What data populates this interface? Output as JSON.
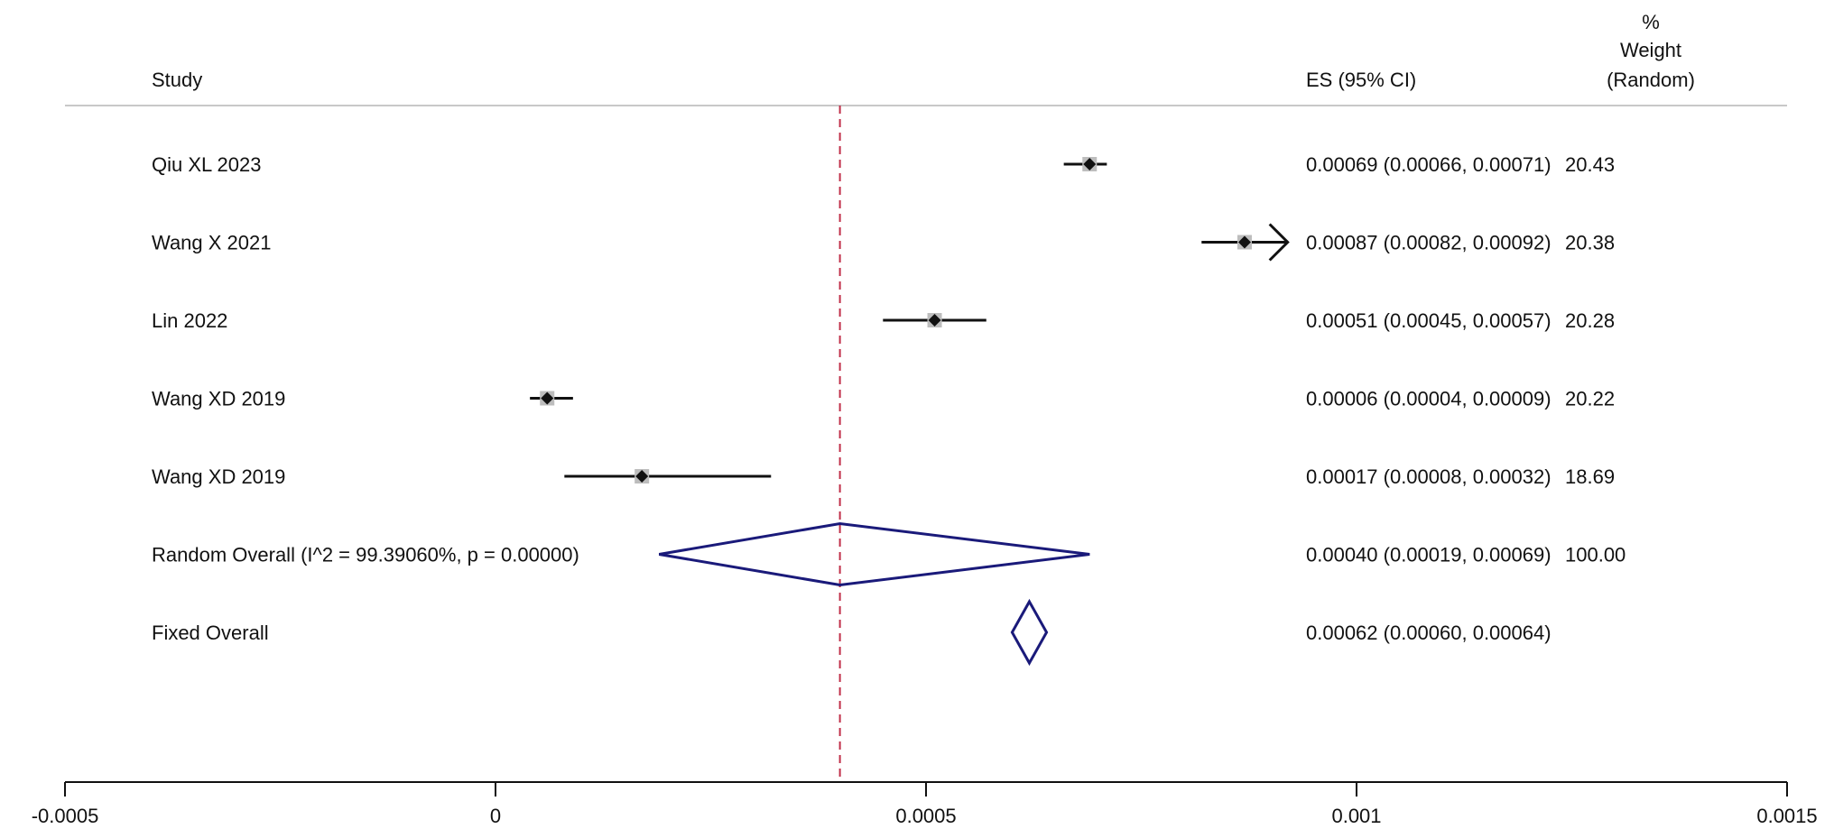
{
  "chart_data": {
    "type": "forest",
    "headers": {
      "study": "Study",
      "es": "ES (95% CI)",
      "weight": [
        "%",
        "Weight",
        "(Random)"
      ]
    },
    "studies": [
      {
        "name": "Qiu XL 2023",
        "es": 0.00069,
        "lo": 0.00066,
        "hi": 0.00071,
        "es_text": "0.00069 (0.00066, 0.00071)",
        "weight": "20.43",
        "arrow": false
      },
      {
        "name": "Wang X 2021",
        "es": 0.00087,
        "lo": 0.00082,
        "hi": 0.00092,
        "es_text": "0.00087 (0.00082, 0.00092)",
        "weight": "20.38",
        "arrow": true
      },
      {
        "name": "Lin 2022",
        "es": 0.00051,
        "lo": 0.00045,
        "hi": 0.00057,
        "es_text": "0.00051 (0.00045, 0.00057)",
        "weight": "20.28",
        "arrow": false
      },
      {
        "name": "Wang XD 2019",
        "es": 6e-05,
        "lo": 4e-05,
        "hi": 9e-05,
        "es_text": "0.00006 (0.00004, 0.00009)",
        "weight": "20.22",
        "arrow": false
      },
      {
        "name": "Wang XD 2019",
        "es": 0.00017,
        "lo": 8e-05,
        "hi": 0.00032,
        "es_text": "0.00017 (0.00008, 0.00032)",
        "weight": "18.69",
        "arrow": false
      }
    ],
    "overall": [
      {
        "name": "Random Overall  (I^2 = 99.39060%, p = 0.00000)",
        "es": 0.0004,
        "lo": 0.00019,
        "hi": 0.00069,
        "es_text": "0.00040 (0.00019, 0.00069)",
        "weight": "100.00"
      },
      {
        "name": "Fixed Overall",
        "es": 0.00062,
        "lo": 0.0006,
        "hi": 0.00064,
        "es_text": "0.00062 (0.00060, 0.00064)",
        "weight": ""
      }
    ],
    "reference_line": 0.0004,
    "xlim": [
      -0.0005,
      0.0015
    ],
    "xticks": [
      -0.0005,
      0,
      0.0005,
      0.001,
      0.0015
    ],
    "xtick_labels": [
      "-0.0005",
      "0",
      "0.0005",
      "0.001",
      "0.0015"
    ],
    "colors": {
      "ci_line": "#111111",
      "point": "#111111",
      "weight_box": "#bdbdbd",
      "diamond": "#1a1a7a",
      "reference_line": "#c0304a",
      "header_rule": "#c8c8c8",
      "axis": "#111111"
    }
  }
}
